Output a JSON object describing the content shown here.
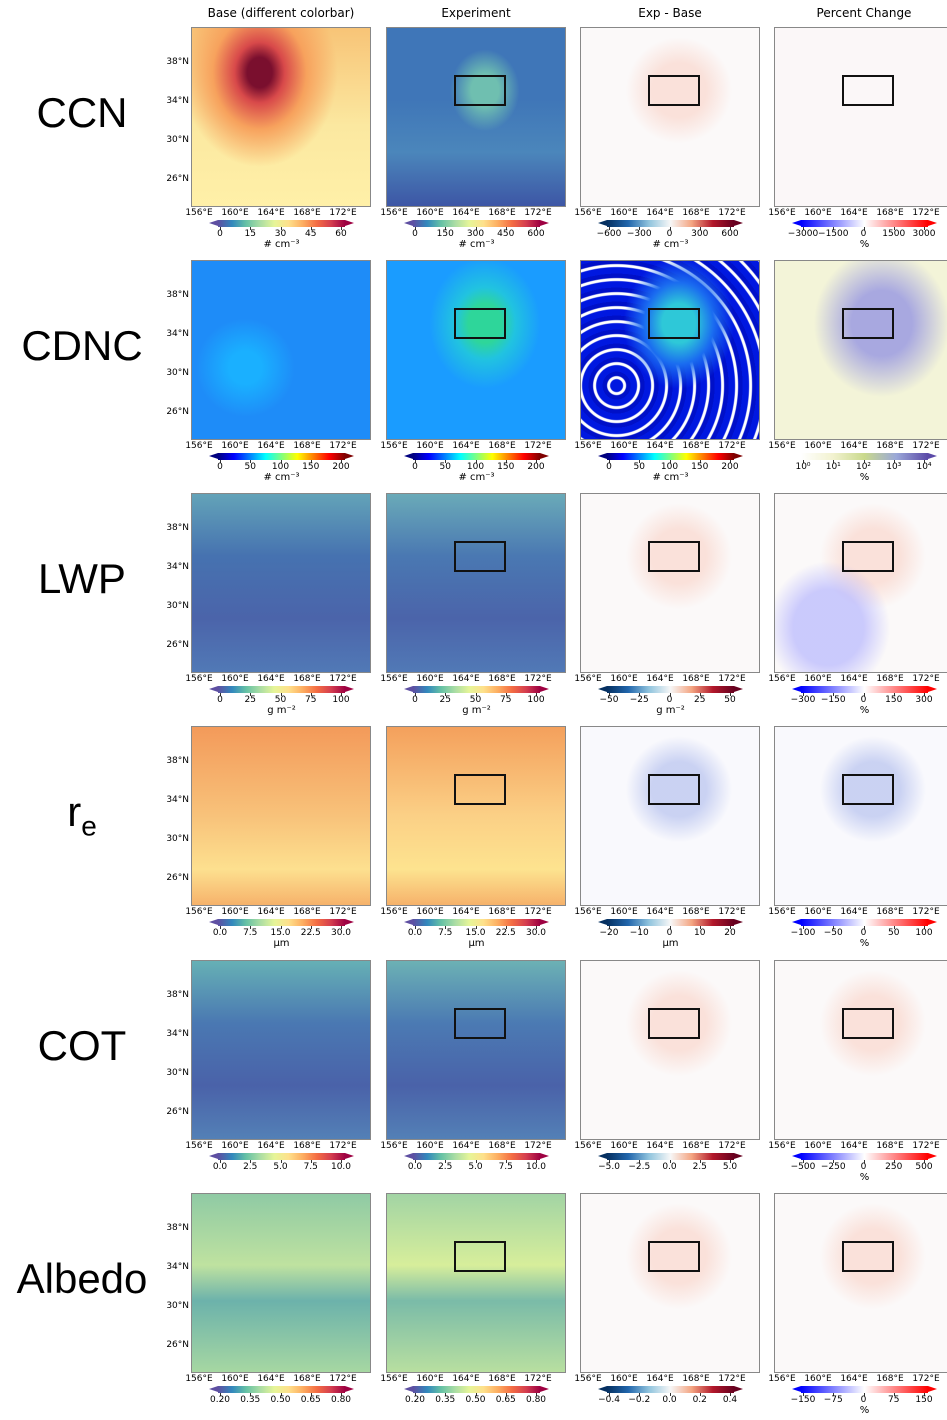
{
  "columns": [
    "Base (different colorbar)",
    "Experiment",
    "Exp - Base",
    "Percent Change"
  ],
  "lat_ticks": [
    "38°N",
    "34°N",
    "30°N",
    "26°N"
  ],
  "lon_ticks": [
    "156°E",
    "160°E",
    "164°E",
    "168°E",
    "172°E"
  ],
  "rows": [
    {
      "label": "CCN",
      "panels": [
        {
          "ticks": [
            "0",
            "15",
            "30",
            "45",
            "60"
          ],
          "unit": "# cm⁻³"
        },
        {
          "ticks": [
            "0",
            "150",
            "300",
            "450",
            "600"
          ],
          "unit": "# cm⁻³"
        },
        {
          "ticks": [
            "−600",
            "−300",
            "0",
            "300",
            "600"
          ],
          "unit": "# cm⁻³"
        },
        {
          "ticks": [
            "−3000",
            "−1500",
            "0",
            "1500",
            "3000"
          ],
          "unit": "%"
        }
      ]
    },
    {
      "label": "CDNC",
      "panels": [
        {
          "ticks": [
            "0",
            "50",
            "100",
            "150",
            "200"
          ],
          "unit": "# cm⁻³"
        },
        {
          "ticks": [
            "0",
            "50",
            "100",
            "150",
            "200"
          ],
          "unit": "# cm⁻³"
        },
        {
          "ticks": [
            "0",
            "50",
            "100",
            "150",
            "200"
          ],
          "unit": "# cm⁻³"
        },
        {
          "ticks": [
            "10⁰",
            "10¹",
            "10²",
            "10³",
            "10⁴"
          ],
          "unit": "%"
        }
      ]
    },
    {
      "label": "LWP",
      "panels": [
        {
          "ticks": [
            "0",
            "25",
            "50",
            "75",
            "100"
          ],
          "unit": "g m⁻²"
        },
        {
          "ticks": [
            "0",
            "25",
            "50",
            "75",
            "100"
          ],
          "unit": "g m⁻²"
        },
        {
          "ticks": [
            "−50",
            "−25",
            "0",
            "25",
            "50"
          ],
          "unit": "g m⁻²"
        },
        {
          "ticks": [
            "−300",
            "−150",
            "0",
            "150",
            "300"
          ],
          "unit": "%"
        }
      ]
    },
    {
      "label": "r",
      "subscript": "e",
      "panels": [
        {
          "ticks": [
            "0.0",
            "7.5",
            "15.0",
            "22.5",
            "30.0"
          ],
          "unit": "μm"
        },
        {
          "ticks": [
            "0.0",
            "7.5",
            "15.0",
            "22.5",
            "30.0"
          ],
          "unit": "μm"
        },
        {
          "ticks": [
            "−20",
            "−10",
            "0",
            "10",
            "20"
          ],
          "unit": "μm"
        },
        {
          "ticks": [
            "−100",
            "−50",
            "0",
            "50",
            "100"
          ],
          "unit": "%"
        }
      ]
    },
    {
      "label": "COT",
      "panels": [
        {
          "ticks": [
            "0.0",
            "2.5",
            "5.0",
            "7.5",
            "10.0"
          ]
        },
        {
          "ticks": [
            "0.0",
            "2.5",
            "5.0",
            "7.5",
            "10.0"
          ]
        },
        {
          "ticks": [
            "−5.0",
            "−2.5",
            "0.0",
            "2.5",
            "5.0"
          ]
        },
        {
          "ticks": [
            "−500",
            "−250",
            "0",
            "250",
            "500"
          ],
          "unit": "%"
        }
      ]
    },
    {
      "label": "Albedo",
      "panels": [
        {
          "ticks": [
            "0.20",
            "0.35",
            "0.50",
            "0.65",
            "0.80"
          ]
        },
        {
          "ticks": [
            "0.20",
            "0.35",
            "0.50",
            "0.65",
            "0.80"
          ]
        },
        {
          "ticks": [
            "−0.4",
            "−0.2",
            "0.0",
            "0.2",
            "0.4"
          ]
        },
        {
          "ticks": [
            "−150",
            "−75",
            "0",
            "75",
            "150"
          ],
          "unit": "%"
        }
      ]
    }
  ]
}
